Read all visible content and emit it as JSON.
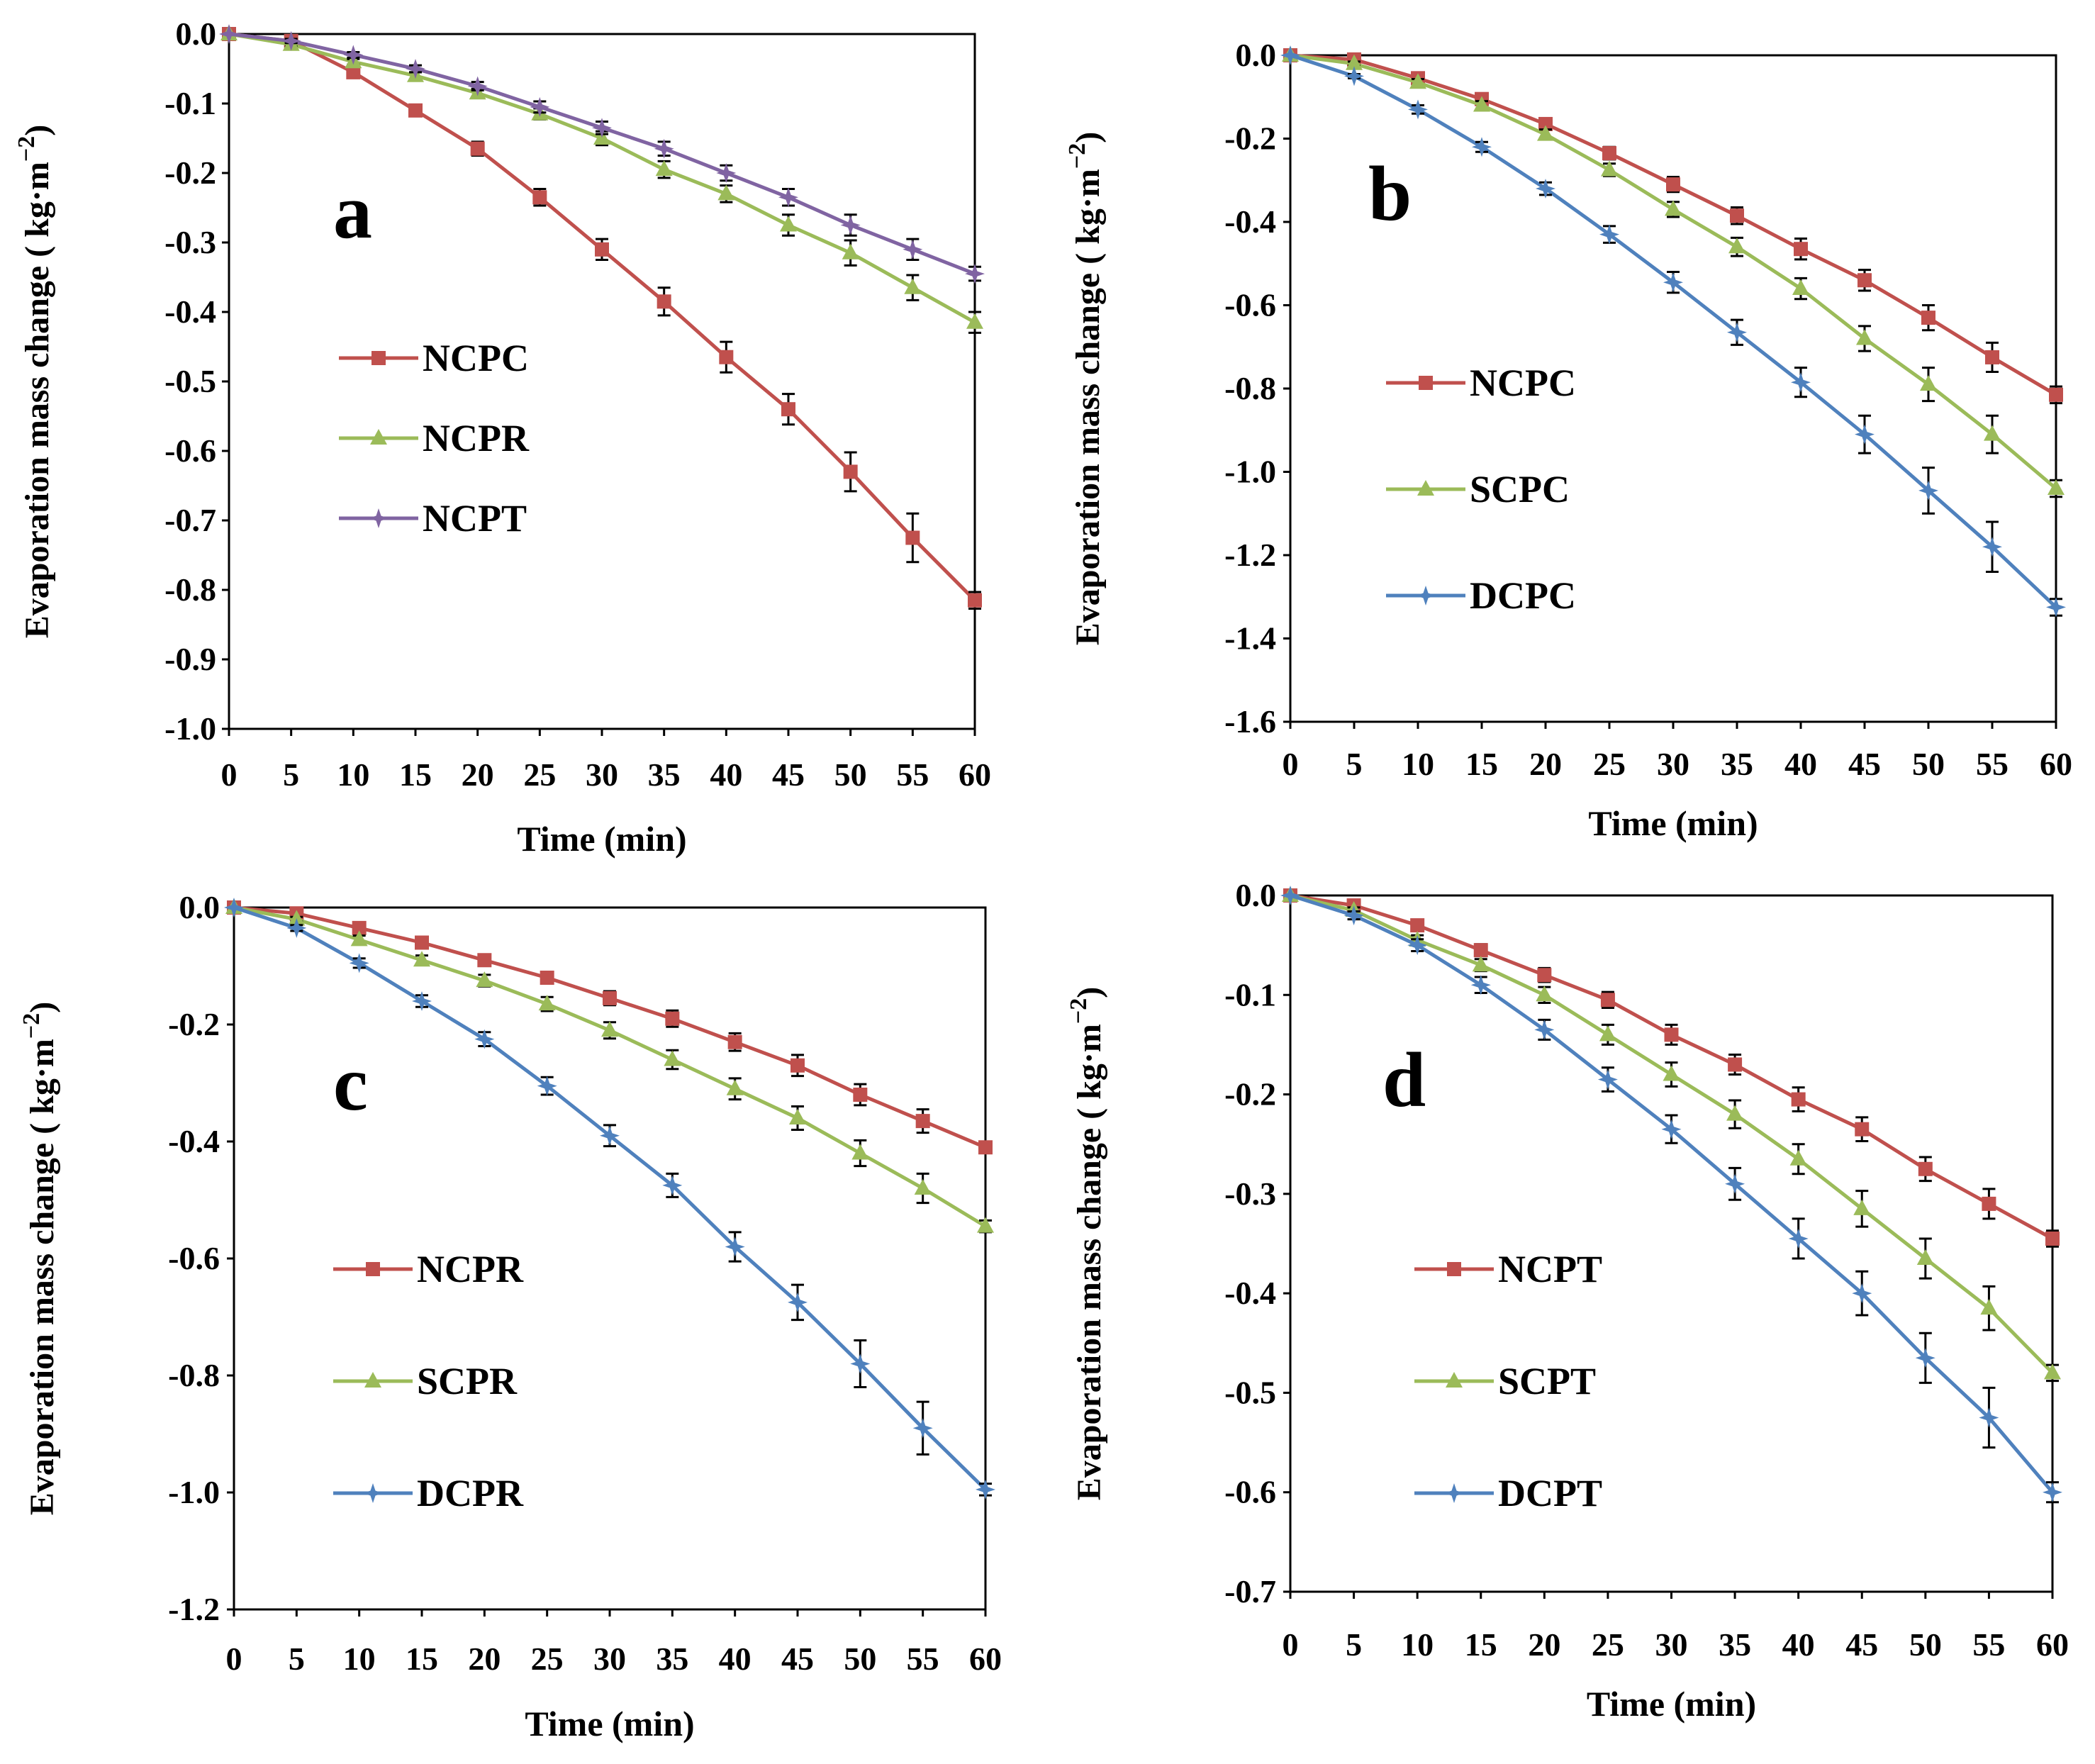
{
  "colors": {
    "NC": "#c0504d",
    "NCP": "#c0504d",
    "SC": "#9bbb59",
    "NCPR_a": "#9bbb59",
    "DC": "#4f81bd",
    "NCPT_a": "#8064a2",
    "axis": "#000000"
  },
  "chart_data": [
    {
      "panel": "a",
      "type": "line",
      "xlabel": "Time (min)",
      "ylabel": "Evaporation mass change ( kg·m",
      "ylabel_sup": "−2",
      "ylabel_close": ")",
      "ylim": [
        -1.0,
        0.0
      ],
      "yticks": [
        "0.0",
        "-0.1",
        "-0.2",
        "-0.3",
        "-0.4",
        "-0.5",
        "-0.6",
        "-0.7",
        "-0.8",
        "-0.9",
        "-1.0"
      ],
      "ytick_values": [
        0,
        -0.1,
        -0.2,
        -0.3,
        -0.4,
        -0.5,
        -0.6,
        -0.7,
        -0.8,
        -0.9,
        -1.0
      ],
      "x": [
        0,
        5,
        10,
        15,
        20,
        25,
        30,
        35,
        40,
        45,
        50,
        55,
        60
      ],
      "xticks": [
        "0",
        "5",
        "10",
        "15",
        "20",
        "25",
        "30",
        "35",
        "40",
        "45",
        "50",
        "55",
        "60"
      ],
      "series": [
        {
          "name": "NCPC",
          "color": "#c0504d",
          "marker": "square",
          "values": [
            0,
            -0.01,
            -0.055,
            -0.11,
            -0.165,
            -0.235,
            -0.31,
            -0.385,
            -0.465,
            -0.54,
            -0.63,
            -0.725,
            -0.815
          ],
          "errors": [
            0,
            0.003,
            0.006,
            0.008,
            0.01,
            0.012,
            0.015,
            0.02,
            0.022,
            0.022,
            0.028,
            0.035,
            0.012
          ]
        },
        {
          "name": "NCPR",
          "color": "#9bbb59",
          "marker": "triangle",
          "values": [
            0,
            -0.015,
            -0.04,
            -0.06,
            -0.085,
            -0.115,
            -0.15,
            -0.195,
            -0.23,
            -0.275,
            -0.315,
            -0.365,
            -0.415
          ],
          "errors": [
            0,
            0.003,
            0.004,
            0.005,
            0.006,
            0.008,
            0.01,
            0.012,
            0.012,
            0.015,
            0.018,
            0.018,
            0.015
          ]
        },
        {
          "name": "NCPT",
          "color": "#8064a2",
          "marker": "star",
          "values": [
            0,
            -0.01,
            -0.03,
            -0.05,
            -0.075,
            -0.105,
            -0.135,
            -0.165,
            -0.2,
            -0.235,
            -0.275,
            -0.31,
            -0.345
          ],
          "errors": [
            0,
            0.003,
            0.004,
            0.005,
            0.006,
            0.008,
            0.009,
            0.01,
            0.011,
            0.012,
            0.015,
            0.015,
            0.01
          ]
        }
      ]
    },
    {
      "panel": "b",
      "type": "line",
      "xlabel": "Time (min)",
      "ylabel": "Evaporation mass change ( kg·m",
      "ylabel_sup": "−2",
      "ylabel_close": ")",
      "ylim": [
        -1.6,
        0.0
      ],
      "yticks": [
        "0.0",
        "-0.2",
        "-0.4",
        "-0.6",
        "-0.8",
        "-1.0",
        "-1.2",
        "-1.4",
        "-1.6"
      ],
      "ytick_values": [
        0,
        -0.2,
        -0.4,
        -0.6,
        -0.8,
        -1.0,
        -1.2,
        -1.4,
        -1.6
      ],
      "x": [
        0,
        5,
        10,
        15,
        20,
        25,
        30,
        35,
        40,
        45,
        50,
        55,
        60
      ],
      "xticks": [
        "0",
        "5",
        "10",
        "15",
        "20",
        "25",
        "30",
        "35",
        "40",
        "45",
        "50",
        "55",
        "60"
      ],
      "series": [
        {
          "name": "NCPC",
          "color": "#c0504d",
          "marker": "square",
          "values": [
            0,
            -0.01,
            -0.055,
            -0.105,
            -0.165,
            -0.235,
            -0.31,
            -0.385,
            -0.465,
            -0.54,
            -0.63,
            -0.725,
            -0.815
          ],
          "errors": [
            0,
            0.004,
            0.008,
            0.01,
            0.012,
            0.015,
            0.018,
            0.02,
            0.025,
            0.025,
            0.03,
            0.035,
            0.02
          ]
        },
        {
          "name": "SCPC",
          "color": "#9bbb59",
          "marker": "triangle",
          "values": [
            0,
            -0.02,
            -0.065,
            -0.12,
            -0.19,
            -0.275,
            -0.37,
            -0.46,
            -0.56,
            -0.68,
            -0.79,
            -0.91,
            -1.04
          ],
          "errors": [
            0,
            0.005,
            0.008,
            0.01,
            0.012,
            0.015,
            0.018,
            0.022,
            0.025,
            0.03,
            0.04,
            0.045,
            0.02
          ]
        },
        {
          "name": "DCPC",
          "color": "#4f81bd",
          "marker": "star",
          "values": [
            0,
            -0.05,
            -0.13,
            -0.22,
            -0.32,
            -0.43,
            -0.545,
            -0.665,
            -0.785,
            -0.91,
            -1.045,
            -1.18,
            -1.325
          ],
          "errors": [
            0,
            0.005,
            0.01,
            0.012,
            0.015,
            0.02,
            0.025,
            0.03,
            0.035,
            0.045,
            0.055,
            0.06,
            0.02
          ]
        }
      ]
    },
    {
      "panel": "c",
      "type": "line",
      "xlabel": "Time (min)",
      "ylabel": "Evaporation mass change ( kg·m",
      "ylabel_sup": "−2",
      "ylabel_close": ")",
      "ylim": [
        -1.2,
        0.0
      ],
      "yticks": [
        "0.0",
        "-0.2",
        "-0.4",
        "-0.6",
        "-0.8",
        "-1.0",
        "-1.2"
      ],
      "ytick_values": [
        0,
        -0.2,
        -0.4,
        -0.6,
        -0.8,
        -1.0,
        -1.2
      ],
      "x": [
        0,
        5,
        10,
        15,
        20,
        25,
        30,
        35,
        40,
        45,
        50,
        55,
        60
      ],
      "xticks": [
        "0",
        "5",
        "10",
        "15",
        "20",
        "25",
        "30",
        "35",
        "40",
        "45",
        "50",
        "55",
        "60"
      ],
      "series": [
        {
          "name": "NCPR",
          "color": "#c0504d",
          "marker": "square",
          "values": [
            0,
            -0.01,
            -0.035,
            -0.06,
            -0.09,
            -0.12,
            -0.155,
            -0.19,
            -0.23,
            -0.27,
            -0.32,
            -0.365,
            -0.41
          ],
          "errors": [
            0,
            0.004,
            0.006,
            0.008,
            0.01,
            0.01,
            0.012,
            0.014,
            0.015,
            0.018,
            0.018,
            0.02,
            0.01
          ]
        },
        {
          "name": "SCPR",
          "color": "#9bbb59",
          "marker": "triangle",
          "values": [
            0,
            -0.02,
            -0.055,
            -0.09,
            -0.125,
            -0.165,
            -0.21,
            -0.26,
            -0.31,
            -0.36,
            -0.42,
            -0.48,
            -0.545
          ],
          "errors": [
            0,
            0.004,
            0.007,
            0.008,
            0.01,
            0.012,
            0.014,
            0.016,
            0.018,
            0.02,
            0.022,
            0.025,
            0.01
          ]
        },
        {
          "name": "DCPR",
          "color": "#4f81bd",
          "marker": "star",
          "values": [
            0,
            -0.035,
            -0.095,
            -0.16,
            -0.225,
            -0.305,
            -0.39,
            -0.475,
            -0.58,
            -0.675,
            -0.78,
            -0.89,
            -0.995
          ],
          "errors": [
            0,
            0.005,
            0.008,
            0.01,
            0.012,
            0.015,
            0.018,
            0.02,
            0.025,
            0.03,
            0.04,
            0.045,
            0.01
          ]
        }
      ]
    },
    {
      "panel": "d",
      "type": "line",
      "xlabel": "Time (min)",
      "ylabel": "Evaporation mass change ( kg·m",
      "ylabel_sup": "−2",
      "ylabel_close": ")",
      "ylim": [
        -0.7,
        0.0
      ],
      "yticks": [
        "0.0",
        "-0.1",
        "-0.2",
        "-0.3",
        "-0.4",
        "-0.5",
        "-0.6",
        "-0.7"
      ],
      "ytick_values": [
        0,
        -0.1,
        -0.2,
        -0.3,
        -0.4,
        -0.5,
        -0.6,
        -0.7
      ],
      "x": [
        0,
        5,
        10,
        15,
        20,
        25,
        30,
        35,
        40,
        45,
        50,
        55,
        60
      ],
      "xticks": [
        "0",
        "5",
        "10",
        "15",
        "20",
        "25",
        "30",
        "35",
        "40",
        "45",
        "50",
        "55",
        "60"
      ],
      "series": [
        {
          "name": "NCPT",
          "color": "#c0504d",
          "marker": "square",
          "values": [
            0,
            -0.01,
            -0.03,
            -0.055,
            -0.08,
            -0.105,
            -0.14,
            -0.17,
            -0.205,
            -0.235,
            -0.275,
            -0.31,
            -0.345
          ],
          "errors": [
            0,
            0.003,
            0.005,
            0.006,
            0.007,
            0.008,
            0.01,
            0.01,
            0.012,
            0.012,
            0.012,
            0.015,
            0.008
          ]
        },
        {
          "name": "SCPT",
          "color": "#9bbb59",
          "marker": "triangle",
          "values": [
            0,
            -0.015,
            -0.045,
            -0.07,
            -0.1,
            -0.14,
            -0.18,
            -0.22,
            -0.265,
            -0.315,
            -0.365,
            -0.415,
            -0.48
          ],
          "errors": [
            0,
            0.003,
            0.005,
            0.006,
            0.008,
            0.01,
            0.012,
            0.014,
            0.015,
            0.018,
            0.02,
            0.022,
            0.008
          ]
        },
        {
          "name": "DCPT",
          "color": "#4f81bd",
          "marker": "star",
          "values": [
            0,
            -0.02,
            -0.05,
            -0.09,
            -0.135,
            -0.185,
            -0.235,
            -0.29,
            -0.345,
            -0.4,
            -0.465,
            -0.525,
            -0.6
          ],
          "errors": [
            0,
            0.004,
            0.006,
            0.008,
            0.01,
            0.012,
            0.014,
            0.016,
            0.02,
            0.022,
            0.025,
            0.03,
            0.01
          ]
        }
      ]
    }
  ]
}
